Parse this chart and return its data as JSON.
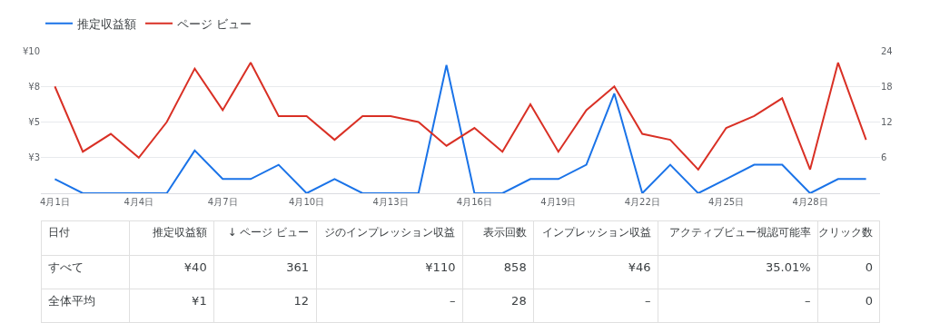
{
  "chart_data": [
    {
      "type": "line",
      "categories": [
        "4月1日",
        null,
        null,
        "4月4日",
        null,
        null,
        "4月7日",
        null,
        null,
        "4月10日",
        null,
        null,
        "4月13日",
        null,
        null,
        "4月16日",
        null,
        null,
        "4月19日",
        null,
        null,
        "4月22日",
        null,
        null,
        "4月25日",
        null,
        null,
        "4月28日",
        null,
        null
      ],
      "series": [
        {
          "name": "推定収益額",
          "color": "#1a73e8",
          "values": [
            1,
            0,
            0,
            0,
            0,
            3,
            1,
            1,
            2,
            0,
            1,
            0,
            0,
            0,
            9,
            0,
            0,
            1,
            1,
            2,
            7,
            0,
            2,
            0,
            1,
            2,
            2,
            0,
            1,
            1
          ]
        },
        {
          "name": "ページ ビュー",
          "color": "#d93025",
          "axis": "y2",
          "values": [
            18,
            7,
            10,
            6,
            12,
            21,
            14,
            22,
            13,
            13,
            9,
            13,
            13,
            12,
            8,
            11,
            7,
            15,
            7,
            14,
            18,
            10,
            9,
            4,
            11,
            13,
            16,
            4,
            22,
            9
          ]
        }
      ],
      "ylim": [
        0,
        10
      ],
      "yticks": [
        {
          "value": 2.5,
          "label": "¥3"
        },
        {
          "value": 5,
          "label": "¥5"
        },
        {
          "value": 7.5,
          "label": "¥8"
        },
        {
          "value": 10,
          "label": "¥10"
        }
      ],
      "y2lim": [
        0,
        24
      ],
      "y2ticks": [
        6,
        12,
        18,
        24
      ],
      "grid": "y",
      "legend": "top left",
      "marker": "none",
      "line_style": "solid"
    },
    {
      "type": "other",
      "categories": [
        "日付",
        "推定収益額",
        "↓ ページ ビュー",
        "ジのインプレッション収益",
        "表示回数",
        "インプレッション収益",
        "アクティブビュー視認可能率",
        "クリック数"
      ],
      "annotations": [
        "すべて",
        "¥40",
        "361",
        "¥110",
        "858",
        "¥46",
        "35.01%",
        "0",
        "全体平均",
        "¥1",
        "12",
        "–",
        "28",
        "–",
        "–",
        "0"
      ]
    }
  ]
}
